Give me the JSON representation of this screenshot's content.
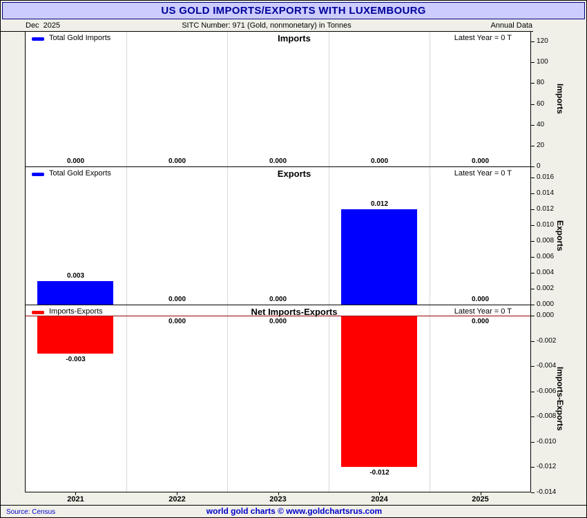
{
  "title": "US GOLD IMPORTS/EXPORTS WITH LUXEMBOURG",
  "header": {
    "date": "Dec  2025",
    "sitc": "SITC Number: 971 (Gold, nonmonetary) in Tonnes",
    "frequency": "Annual Data"
  },
  "footer": {
    "source": "Source: Census",
    "credit": "world gold charts © www.goldchartsrus.com"
  },
  "colors": {
    "title_bg": "#ccccff",
    "title_text": "#000099",
    "page_bg": "#f0f0e8",
    "bar_blue": "#0000ff",
    "bar_red": "#ff0000",
    "zero_line": "#990000",
    "footer_blue": "#0000cc",
    "gridline": "#d8d8d8"
  },
  "x_categories": [
    "2021",
    "2022",
    "2023",
    "2024",
    "2025"
  ],
  "chart_data": [
    {
      "type": "bar",
      "title": "Imports",
      "legend": "Total Gold Imports",
      "latest": "Latest Year = 0 T",
      "ylabel": "Imports",
      "categories": [
        "2021",
        "2022",
        "2023",
        "2024",
        "2025"
      ],
      "values": [
        0,
        0,
        0,
        0,
        0
      ],
      "value_labels": [
        "0.000",
        "0.000",
        "0.000",
        "0.000",
        "0.000"
      ],
      "bar_color": "#0000ff",
      "ylim": [
        0,
        130
      ],
      "yticks": [
        0,
        20,
        40,
        60,
        80,
        100,
        120
      ],
      "ytick_labels": [
        "0",
        "20",
        "40",
        "60",
        "80",
        "100",
        "120"
      ],
      "zero_line": false
    },
    {
      "type": "bar",
      "title": "Exports",
      "legend": "Total Gold Exports",
      "latest": "Latest Year = 0 T",
      "ylabel": "Exports",
      "categories": [
        "2021",
        "2022",
        "2023",
        "2024",
        "2025"
      ],
      "values": [
        0.003,
        0,
        0,
        0.012,
        0
      ],
      "value_labels": [
        "0.003",
        "0.000",
        "0.000",
        "0.012",
        "0.000"
      ],
      "bar_color": "#0000ff",
      "ylim": [
        0,
        0.0174
      ],
      "yticks": [
        0.016,
        0.014,
        0.012,
        0.01,
        0.008,
        0.006,
        0.004,
        0.002,
        0
      ],
      "ytick_labels": [
        "0.016",
        "0.014",
        "0.012",
        "0.010",
        "0.008",
        "0.006",
        "0.004",
        "0.002",
        "0.000"
      ],
      "zero_line": false
    },
    {
      "type": "bar",
      "title": "Net Imports-Exports",
      "legend": "Imports-Exports",
      "latest": "Latest Year = 0 T",
      "ylabel": "Imports-Exports",
      "categories": [
        "2021",
        "2022",
        "2023",
        "2024",
        "2025"
      ],
      "values": [
        -0.003,
        0,
        0,
        -0.012,
        0
      ],
      "value_labels": [
        "-0.003",
        "0.000",
        "0.000",
        "-0.012",
        "0.000"
      ],
      "bar_color": "#ff0000",
      "ylim": [
        -0.014,
        0.000875
      ],
      "yticks": [
        0,
        -0.002,
        -0.004,
        -0.006,
        -0.008,
        -0.01,
        -0.012,
        -0.014
      ],
      "ytick_labels": [
        "0.000",
        "-0.002",
        "-0.004",
        "-0.006",
        "-0.008",
        "-0.010",
        "-0.012",
        "-0.014"
      ],
      "zero_line": true
    }
  ]
}
